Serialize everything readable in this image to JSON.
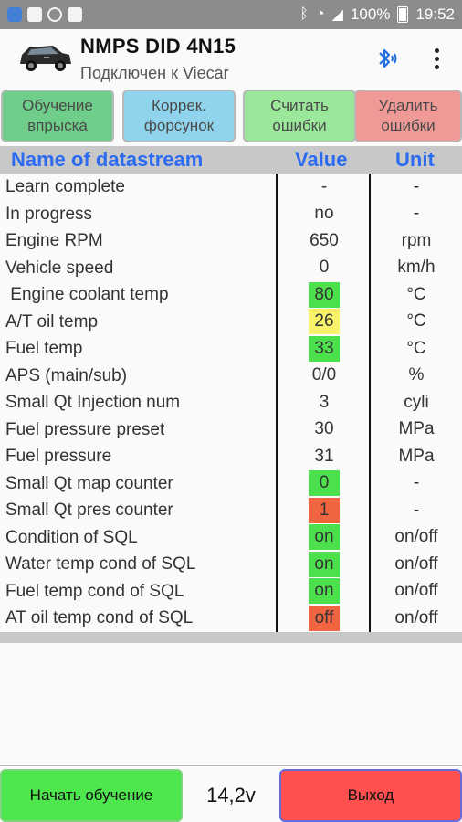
{
  "status_bar": {
    "battery": "100%",
    "time": "19:52",
    "icons": [
      "cloud-icon",
      "photo-icon",
      "shield-icon",
      "doc-icon",
      "bluetooth-icon",
      "wifi-icon",
      "signal-icon",
      "battery-icon"
    ]
  },
  "header": {
    "title": "NMPS DID 4N15",
    "subtitle": "Подключен к Viecar"
  },
  "actions": [
    {
      "label": "Обучение\nвпрыска",
      "color": "#6fcf8a"
    },
    {
      "label": "Коррек.\nфорсунок",
      "color": "#8fd4ec"
    },
    {
      "label": "Считать\nошибки",
      "color": "#9be89b"
    },
    {
      "label": "Удалить\nошибки",
      "color": "#ef9a96"
    }
  ],
  "table": {
    "headers": {
      "name": "Name of datastream",
      "value": "Value",
      "unit": "Unit"
    },
    "rows": [
      {
        "name": "Learn complete",
        "value": "-",
        "unit": "-",
        "highlight": null
      },
      {
        "name": "In progress",
        "value": "no",
        "unit": "-",
        "highlight": null
      },
      {
        "name": "Engine RPM",
        "value": "650",
        "unit": "rpm",
        "highlight": null
      },
      {
        "name": "Vehicle speed",
        "value": "0",
        "unit": "km/h",
        "highlight": null
      },
      {
        "name": " Engine coolant temp",
        "value": "80",
        "unit": "°C",
        "highlight": "#4ce04c"
      },
      {
        "name": "A/T oil temp",
        "value": "26",
        "unit": "°C",
        "highlight": "#f7f26a"
      },
      {
        "name": "Fuel temp",
        "value": "33",
        "unit": "°C",
        "highlight": "#4ce04c"
      },
      {
        "name": "APS (main/sub)",
        "value": "0/0",
        "unit": "%",
        "highlight": null
      },
      {
        "name": "Small Qt Injection num",
        "value": "3",
        "unit": "cyli",
        "highlight": null
      },
      {
        "name": "Fuel pressure preset",
        "value": "30",
        "unit": "MPa",
        "highlight": null
      },
      {
        "name": "Fuel pressure",
        "value": "31",
        "unit": "MPa",
        "highlight": null
      },
      {
        "name": "Small Qt map counter",
        "value": "0",
        "unit": "-",
        "highlight": "#4ce04c"
      },
      {
        "name": "Small Qt pres counter",
        "value": "1",
        "unit": "-",
        "highlight": "#f0653f"
      },
      {
        "name": "Condition of SQL",
        "value": "on",
        "unit": "on/off",
        "highlight": "#4ce04c"
      },
      {
        "name": "Water temp cond of SQL",
        "value": "on",
        "unit": "on/off",
        "highlight": "#4ce04c"
      },
      {
        "name": "Fuel temp cond of SQL",
        "value": "on",
        "unit": "on/off",
        "highlight": "#4ce04c"
      },
      {
        "name": "AT oil temp cond of SQL",
        "value": "off",
        "unit": "on/off",
        "highlight": "#f0653f"
      }
    ]
  },
  "bottom": {
    "start_label": "Начать обучение",
    "voltage": "14,2v",
    "exit_label": "Выход"
  }
}
